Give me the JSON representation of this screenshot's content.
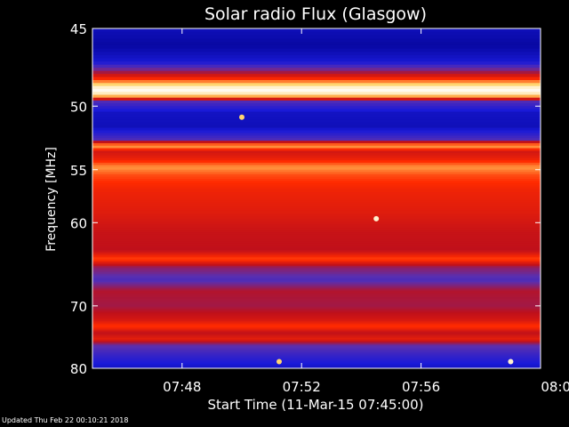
{
  "chart_data": {
    "type": "heatmap",
    "title": "Solar radio Flux (Glasgow)",
    "xlabel": "Start Time (11-Mar-15 07:45:00)",
    "ylabel": "Frequency [MHz]",
    "x_ticks": [
      "07:48",
      "07:52",
      "07:56",
      "08:00"
    ],
    "x_range": [
      "07:45",
      "08:00"
    ],
    "y_ticks": [
      45,
      50,
      55,
      60,
      70,
      80
    ],
    "ylim": [
      45,
      80
    ],
    "y_scale": "reciprocal",
    "grid": false,
    "colorscale": [
      "#00008b",
      "#1a1ad8",
      "#5a2fb0",
      "#c0101a",
      "#ff2a00",
      "#ffd060",
      "#ffffff"
    ],
    "frequency_intensity_profile": [
      {
        "freq": 45.0,
        "level": 0.1
      },
      {
        "freq": 46.0,
        "level": 0.05
      },
      {
        "freq": 47.0,
        "level": 0.15
      },
      {
        "freq": 47.8,
        "level": 0.5
      },
      {
        "freq": 48.3,
        "level": 0.75
      },
      {
        "freq": 48.7,
        "level": 0.95
      },
      {
        "freq": 49.0,
        "level": 1.0
      },
      {
        "freq": 49.3,
        "level": 0.8
      },
      {
        "freq": 49.7,
        "level": 0.3
      },
      {
        "freq": 50.5,
        "level": 0.12
      },
      {
        "freq": 51.5,
        "level": 0.1
      },
      {
        "freq": 52.5,
        "level": 0.3
      },
      {
        "freq": 53.0,
        "level": 0.82
      },
      {
        "freq": 53.5,
        "level": 0.55
      },
      {
        "freq": 54.0,
        "level": 0.6
      },
      {
        "freq": 54.8,
        "level": 0.78
      },
      {
        "freq": 55.5,
        "level": 0.7
      },
      {
        "freq": 57.0,
        "level": 0.62
      },
      {
        "freq": 59.0,
        "level": 0.58
      },
      {
        "freq": 61.0,
        "level": 0.52
      },
      {
        "freq": 63.0,
        "level": 0.5
      },
      {
        "freq": 64.0,
        "level": 0.7
      },
      {
        "freq": 65.0,
        "level": 0.42
      },
      {
        "freq": 66.5,
        "level": 0.3
      },
      {
        "freq": 68.0,
        "level": 0.48
      },
      {
        "freq": 70.0,
        "level": 0.45
      },
      {
        "freq": 72.0,
        "level": 0.55
      },
      {
        "freq": 73.0,
        "level": 0.68
      },
      {
        "freq": 74.0,
        "level": 0.5
      },
      {
        "freq": 75.0,
        "level": 0.6
      },
      {
        "freq": 76.0,
        "level": 0.35
      },
      {
        "freq": 77.5,
        "level": 0.25
      },
      {
        "freq": 78.5,
        "level": 0.2
      },
      {
        "freq": 80.0,
        "level": 0.12
      }
    ],
    "bright_spots": [
      {
        "time": "07:54:30",
        "freq": 59.6,
        "level": 0.95
      },
      {
        "time": "07:50:00",
        "freq": 50.8,
        "level": 0.85
      },
      {
        "time": "07:59:00",
        "freq": 78.8,
        "level": 0.95
      },
      {
        "time": "07:51:15",
        "freq": 78.8,
        "level": 0.85
      }
    ]
  },
  "footer": {
    "updated": "Updated Thu Feb 22 00:10:21 2018"
  }
}
